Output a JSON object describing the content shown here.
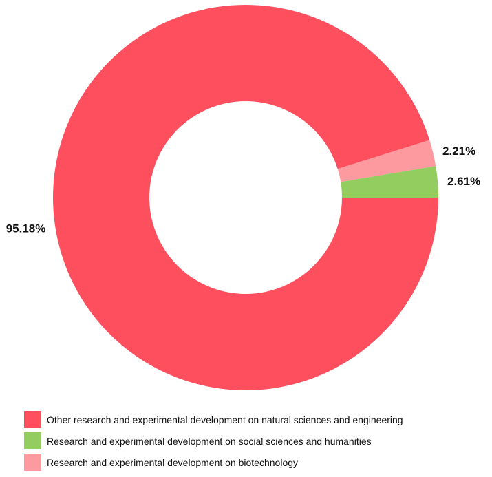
{
  "chart_data": {
    "type": "pie",
    "variant": "donut",
    "title": "",
    "series": [
      {
        "name": "Other research and experimental development on natural sciences and engineering",
        "value": 95.18,
        "label": "95.18%",
        "color": "#fe4f5e"
      },
      {
        "name": "Research and experimental development on social sciences and humanities",
        "value": 2.61,
        "label": "2.61%",
        "color": "#93cd5f"
      },
      {
        "name": "Research and experimental development on biotechnology",
        "value": 2.21,
        "label": "2.21%",
        "color": "#fd9aa0"
      }
    ],
    "start_angle": "3 o'clock",
    "direction": "counter-clockwise",
    "legend_position": "bottom-left"
  }
}
